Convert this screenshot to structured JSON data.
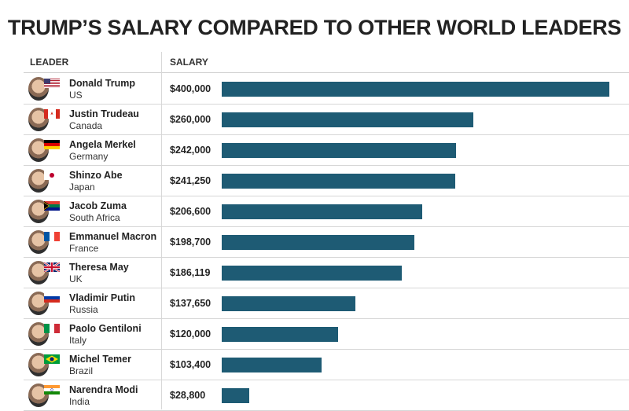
{
  "chart_data": {
    "type": "bar",
    "title": "TRUMP’S SALARY COMPARED TO OTHER WORLD LEADERS",
    "column_headers": {
      "leader": "LEADER",
      "salary": "SALARY"
    },
    "bar_color": "#1e5b74",
    "xlim": [
      0,
      400000
    ],
    "rows": [
      {
        "name": "Donald Trump",
        "country": "US",
        "value": 400000,
        "label": "$400,000",
        "flag": "us-flag-icon"
      },
      {
        "name": "Justin Trudeau",
        "country": "Canada",
        "value": 260000,
        "label": "$260,000",
        "flag": "canada-flag-icon"
      },
      {
        "name": "Angela Merkel",
        "country": "Germany",
        "value": 242000,
        "label": "$242,000",
        "flag": "germany-flag-icon"
      },
      {
        "name": "Shinzo Abe",
        "country": "Japan",
        "value": 241250,
        "label": "$241,250",
        "flag": "japan-flag-icon"
      },
      {
        "name": "Jacob Zuma",
        "country": "South Africa",
        "value": 206600,
        "label": "$206,600",
        "flag": "south-africa-flag-icon"
      },
      {
        "name": "Emmanuel Macron",
        "country": "France",
        "value": 198700,
        "label": "$198,700",
        "flag": "france-flag-icon"
      },
      {
        "name": "Theresa May",
        "country": "UK",
        "value": 186119,
        "label": "$186,119",
        "flag": "uk-flag-icon"
      },
      {
        "name": "Vladimir Putin",
        "country": "Russia",
        "value": 137650,
        "label": "$137,650",
        "flag": "russia-flag-icon"
      },
      {
        "name": "Paolo Gentiloni",
        "country": "Italy",
        "value": 120000,
        "label": "$120,000",
        "flag": "italy-flag-icon"
      },
      {
        "name": "Michel Temer",
        "country": "Brazil",
        "value": 103400,
        "label": "$103,400",
        "flag": "brazil-flag-icon"
      },
      {
        "name": "Narendra Modi",
        "country": "India",
        "value": 28800,
        "label": "$28,800",
        "flag": "india-flag-icon"
      }
    ]
  }
}
